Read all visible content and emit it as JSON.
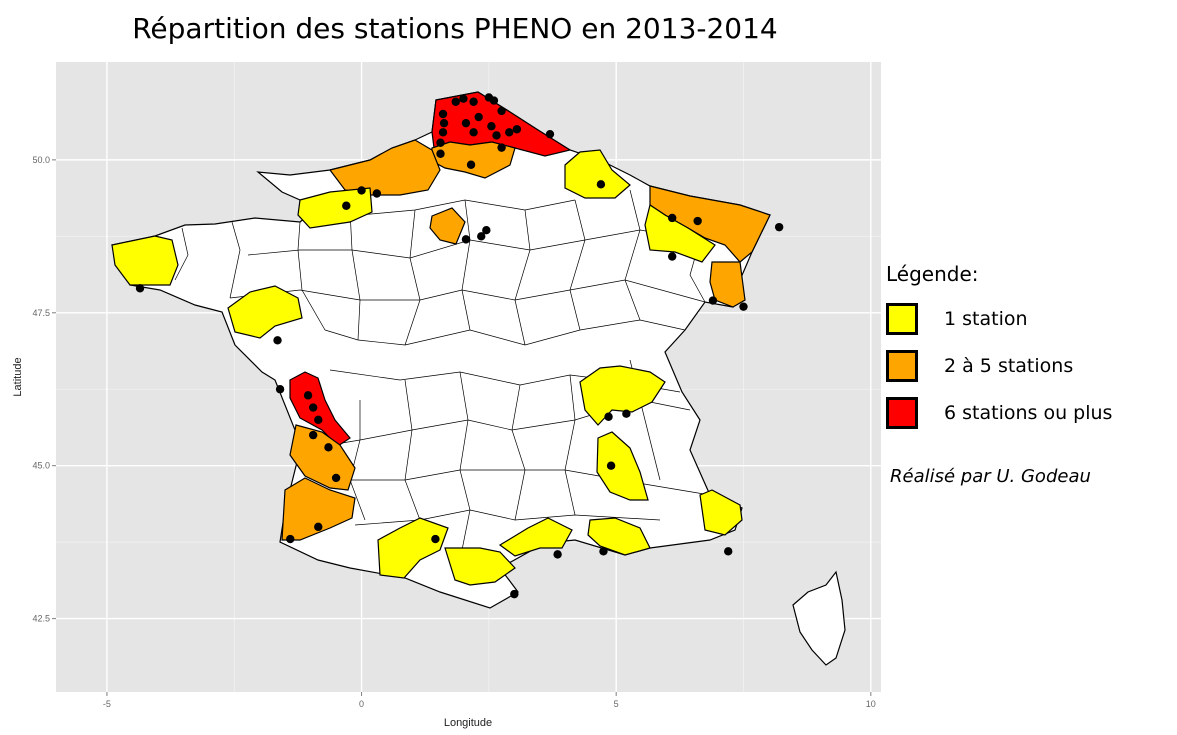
{
  "title": "Répartition des stations PHENO en 2013-2014",
  "axes": {
    "x": {
      "label": "Longitude",
      "ticks": [
        -5,
        0,
        5,
        10
      ],
      "tick_labels": [
        "-5",
        "0",
        "5",
        "10"
      ],
      "range": [
        -6,
        10.2
      ]
    },
    "y": {
      "label": "Latitude",
      "ticks": [
        42.5,
        45.0,
        47.5,
        50.0
      ],
      "tick_labels": [
        "42.5",
        "45.0",
        "47.5",
        "50.0"
      ],
      "range": [
        41.3,
        51.6
      ]
    }
  },
  "legend": {
    "title": "Légende:",
    "items": [
      {
        "label": "1 station",
        "color": "#ffff00"
      },
      {
        "label": "2 à 5 stations",
        "color": "#ffa500"
      },
      {
        "label": "6 stations ou plus",
        "color": "#ff0000"
      }
    ]
  },
  "credit": "Réalisé par U. Godeau",
  "colors": {
    "panel": "#e5e5e5",
    "grid": "#ffffff",
    "land": "#ffffff",
    "border": "#000000"
  },
  "highlighted_regions": [
    {
      "name": "Nord/Pas-de-Calais",
      "class": "6+",
      "color": "#ff0000"
    },
    {
      "name": "Charente-Maritime",
      "class": "6+",
      "color": "#ff0000"
    },
    {
      "name": "Somme/Aisne",
      "class": "2-5",
      "color": "#ffa500"
    },
    {
      "name": "Seine-Maritime",
      "class": "2-5",
      "color": "#ffa500"
    },
    {
      "name": "Île-de-France",
      "class": "2-5",
      "color": "#ffa500"
    },
    {
      "name": "Moselle/Bas-Rhin",
      "class": "2-5",
      "color": "#ffa500"
    },
    {
      "name": "Haut-Rhin",
      "class": "2-5",
      "color": "#ffa500"
    },
    {
      "name": "Gironde",
      "class": "2-5",
      "color": "#ffa500"
    },
    {
      "name": "Landes",
      "class": "2-5",
      "color": "#ffa500"
    },
    {
      "name": "Finistère",
      "class": "1",
      "color": "#ffff00"
    },
    {
      "name": "Calvados",
      "class": "1",
      "color": "#ffff00"
    },
    {
      "name": "Ardennes",
      "class": "1",
      "color": "#ffff00"
    },
    {
      "name": "Meurthe-et-Moselle/Vosges",
      "class": "1",
      "color": "#ffff00"
    },
    {
      "name": "Loire-Atlantique",
      "class": "1",
      "color": "#ffff00"
    },
    {
      "name": "Rhône/Ain",
      "class": "1",
      "color": "#ffff00"
    },
    {
      "name": "Drôme",
      "class": "1",
      "color": "#ffff00"
    },
    {
      "name": "Alpes-Maritimes",
      "class": "1",
      "color": "#ffff00"
    },
    {
      "name": "Bouches-du-Rhône",
      "class": "1",
      "color": "#ffff00"
    },
    {
      "name": "Hérault",
      "class": "1",
      "color": "#ffff00"
    },
    {
      "name": "Aude",
      "class": "1",
      "color": "#ffff00"
    },
    {
      "name": "Haute-Garonne",
      "class": "1",
      "color": "#ffff00"
    }
  ],
  "stations": [
    [
      2.0,
      51.0
    ],
    [
      1.85,
      50.95
    ],
    [
      2.2,
      50.95
    ],
    [
      2.6,
      50.97
    ],
    [
      2.5,
      51.02
    ],
    [
      2.75,
      50.8
    ],
    [
      1.6,
      50.75
    ],
    [
      1.62,
      50.6
    ],
    [
      1.6,
      50.45
    ],
    [
      2.05,
      50.6
    ],
    [
      2.2,
      50.45
    ],
    [
      2.55,
      50.55
    ],
    [
      2.65,
      50.4
    ],
    [
      2.9,
      50.45
    ],
    [
      3.05,
      50.5
    ],
    [
      3.7,
      50.42
    ],
    [
      2.3,
      50.7
    ],
    [
      2.75,
      50.2
    ],
    [
      1.55,
      50.1
    ],
    [
      2.15,
      49.92
    ],
    [
      1.55,
      50.28
    ],
    [
      0.0,
      49.5
    ],
    [
      0.3,
      49.45
    ],
    [
      -0.3,
      49.25
    ],
    [
      4.7,
      49.6
    ],
    [
      6.1,
      49.05
    ],
    [
      6.6,
      49.0
    ],
    [
      8.2,
      48.9
    ],
    [
      6.1,
      48.42
    ],
    [
      2.45,
      48.85
    ],
    [
      2.35,
      48.75
    ],
    [
      2.05,
      48.7
    ],
    [
      7.5,
      47.6
    ],
    [
      6.9,
      47.7
    ],
    [
      -4.35,
      47.9
    ],
    [
      -1.65,
      47.05
    ],
    [
      -1.6,
      46.25
    ],
    [
      -1.05,
      46.15
    ],
    [
      -0.95,
      45.95
    ],
    [
      -0.85,
      45.75
    ],
    [
      -0.95,
      45.5
    ],
    [
      -0.65,
      45.3
    ],
    [
      -0.5,
      44.8
    ],
    [
      -0.85,
      44.0
    ],
    [
      -1.4,
      43.8
    ],
    [
      1.45,
      43.8
    ],
    [
      4.85,
      45.8
    ],
    [
      5.2,
      45.85
    ],
    [
      4.9,
      45.0
    ],
    [
      3.85,
      43.55
    ],
    [
      4.75,
      43.6
    ],
    [
      7.2,
      43.6
    ],
    [
      3.0,
      42.9
    ]
  ]
}
